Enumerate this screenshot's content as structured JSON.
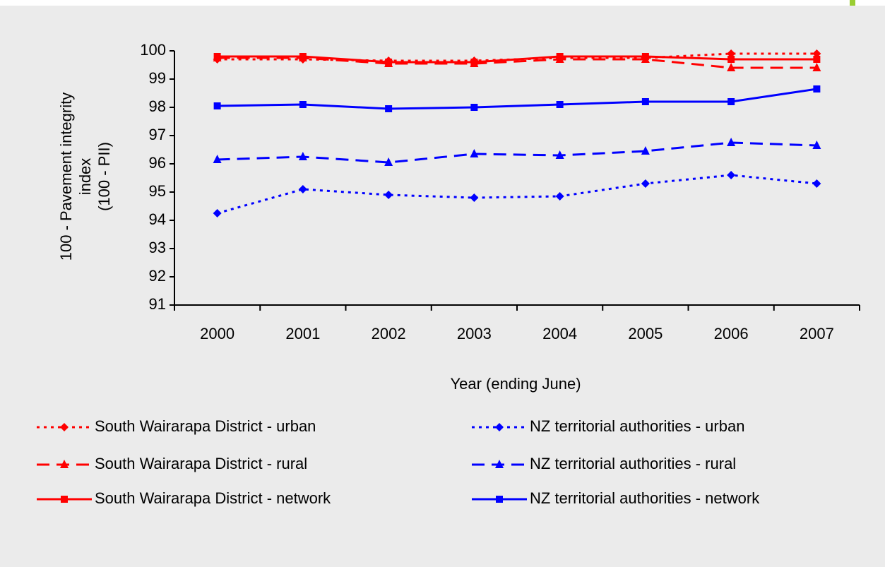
{
  "chart_data": {
    "type": "line",
    "x_label": "Year (ending June)",
    "y_label": [
      "100 - Pavement integrity",
      "index",
      "(100 - PII)"
    ],
    "categories": [
      "2000",
      "2001",
      "2002",
      "2003",
      "2004",
      "2005",
      "2006",
      "2007"
    ],
    "ylim": [
      91,
      100
    ],
    "yticks": [
      91,
      92,
      93,
      94,
      95,
      96,
      97,
      98,
      99,
      100
    ],
    "series": [
      {
        "name": "South Wairarapa District - urban",
        "color": "#ff0000",
        "dash": "dotted",
        "marker": "diamond",
        "values": [
          99.7,
          99.7,
          99.65,
          99.65,
          99.75,
          99.75,
          99.9,
          99.9
        ]
      },
      {
        "name": "South Wairarapa District - rural",
        "color": "#ff0000",
        "dash": "dashed",
        "marker": "triangle",
        "values": [
          99.75,
          99.75,
          99.55,
          99.55,
          99.7,
          99.7,
          99.4,
          99.4
        ]
      },
      {
        "name": "South Wairarapa District - network",
        "color": "#ff0000",
        "dash": "solid",
        "marker": "square",
        "values": [
          99.8,
          99.8,
          99.6,
          99.6,
          99.8,
          99.8,
          99.7,
          99.7
        ]
      },
      {
        "name": "NZ territorial authorities - urban",
        "color": "#0000ff",
        "dash": "dotted",
        "marker": "diamond",
        "values": [
          94.25,
          95.1,
          94.9,
          94.8,
          94.85,
          95.3,
          95.6,
          95.3
        ]
      },
      {
        "name": "NZ territorial authorities - rural",
        "color": "#0000ff",
        "dash": "dashed",
        "marker": "triangle",
        "values": [
          96.15,
          96.25,
          96.05,
          96.35,
          96.3,
          96.45,
          96.75,
          96.65
        ]
      },
      {
        "name": "NZ territorial authorities - network",
        "color": "#0000ff",
        "dash": "solid",
        "marker": "square",
        "values": [
          98.05,
          98.1,
          97.95,
          98.0,
          98.1,
          98.2,
          98.2,
          98.65
        ]
      }
    ]
  }
}
